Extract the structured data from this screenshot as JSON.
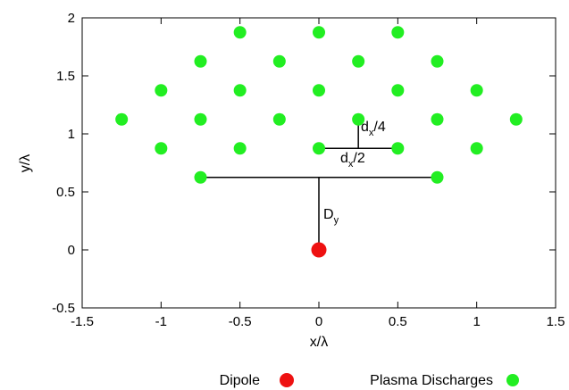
{
  "chart_data": {
    "type": "scatter",
    "xlabel": "x/λ",
    "ylabel": "y/λ",
    "xlim": [
      -1.5,
      1.5
    ],
    "ylim": [
      -0.5,
      2
    ],
    "xticks": [
      -1.5,
      -1,
      -0.5,
      0,
      0.5,
      1,
      1.5
    ],
    "xtick_labels": [
      "-1.5",
      "-1",
      "-0.5",
      "0",
      "0.5",
      "1",
      "1.5"
    ],
    "yticks": [
      -0.5,
      0,
      0.5,
      1,
      1.5,
      2
    ],
    "ytick_labels": [
      "-0.5",
      "0",
      "0.5",
      "1",
      "1.5",
      "2"
    ],
    "grid": false,
    "legend_position": "bottom",
    "series": [
      {
        "name": "Dipole",
        "color": "#ee1111",
        "points": [
          {
            "x": 0,
            "y": 0
          }
        ]
      },
      {
        "name": "Plasma Discharges",
        "color": "#22ee22",
        "points": [
          {
            "x": -0.5,
            "y": 1.875
          },
          {
            "x": 0,
            "y": 1.875
          },
          {
            "x": 0.5,
            "y": 1.875
          },
          {
            "x": -0.75,
            "y": 1.625
          },
          {
            "x": -0.25,
            "y": 1.625
          },
          {
            "x": 0.25,
            "y": 1.625
          },
          {
            "x": 0.75,
            "y": 1.625
          },
          {
            "x": -1,
            "y": 1.375
          },
          {
            "x": -0.5,
            "y": 1.375
          },
          {
            "x": 0,
            "y": 1.375
          },
          {
            "x": 0.5,
            "y": 1.375
          },
          {
            "x": 1,
            "y": 1.375
          },
          {
            "x": -1.25,
            "y": 1.125
          },
          {
            "x": -0.75,
            "y": 1.125
          },
          {
            "x": -0.25,
            "y": 1.125
          },
          {
            "x": 0.25,
            "y": 1.125
          },
          {
            "x": 0.75,
            "y": 1.125
          },
          {
            "x": 1.25,
            "y": 1.125
          },
          {
            "x": -1,
            "y": 0.875
          },
          {
            "x": -0.5,
            "y": 0.875
          },
          {
            "x": 0,
            "y": 0.875
          },
          {
            "x": 0.5,
            "y": 0.875
          },
          {
            "x": 1,
            "y": 0.875
          },
          {
            "x": -0.75,
            "y": 0.625
          },
          {
            "x": 0.75,
            "y": 0.625
          }
        ]
      }
    ],
    "annotations": {
      "dy": {
        "main": "D",
        "sub": "y",
        "line": {
          "x": 0,
          "y1": 0,
          "y2": 0.625
        },
        "span": {
          "x1": -0.75,
          "x2": 0.75,
          "y": 0.625
        }
      },
      "dx_half": {
        "main": "d",
        "sub": "x",
        "rest": "/2",
        "line": {
          "x1": 0,
          "x2": 0.5,
          "y": 0.875
        }
      },
      "dx_quarter": {
        "main": "d",
        "sub": "x",
        "rest": "/4",
        "line": {
          "x": 0.25,
          "y1": 0.875,
          "y2": 1.125
        }
      }
    }
  }
}
